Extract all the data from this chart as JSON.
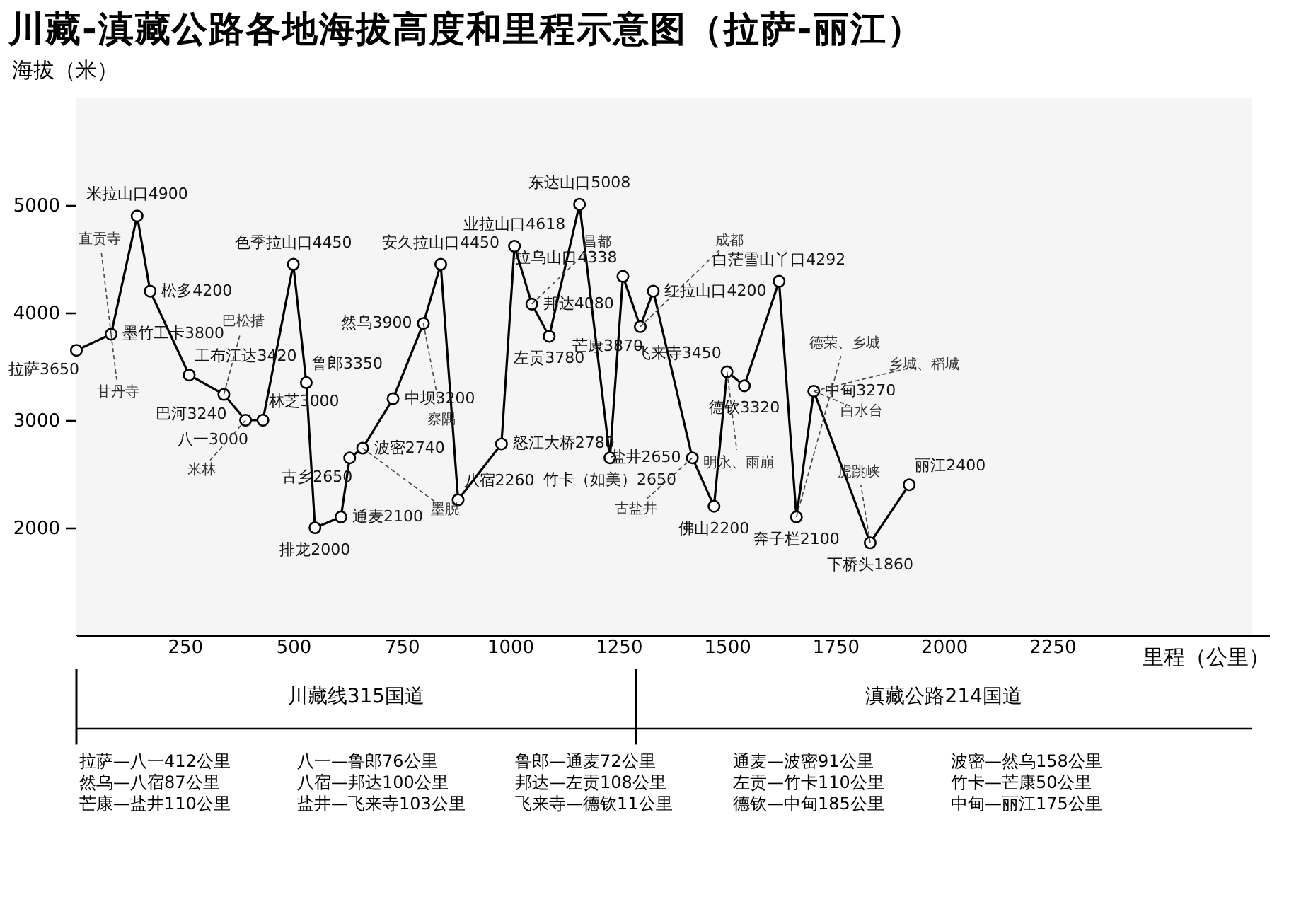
{
  "chart_data": {
    "type": "line",
    "title": "川藏-滇藏公路各地海拔高度和里程示意图（拉萨-丽江）",
    "xlabel": "里程（公里）",
    "ylabel": "海拔（米）",
    "x": [
      0,
      80,
      140,
      170,
      260,
      340,
      390,
      430,
      500,
      530,
      550,
      610,
      630,
      660,
      730,
      800,
      840,
      880,
      980,
      1010,
      1050,
      1090,
      1160,
      1230,
      1260,
      1300,
      1330,
      1420,
      1470,
      1500,
      1540,
      1620,
      1660,
      1700,
      1830,
      1920
    ],
    "values": [
      3650,
      3800,
      4900,
      4200,
      3420,
      3240,
      3000,
      3000,
      4450,
      3350,
      2000,
      2100,
      2650,
      2740,
      3200,
      3900,
      4450,
      2260,
      2780,
      4618,
      4080,
      3780,
      5008,
      2650,
      4338,
      3870,
      4200,
      2650,
      2200,
      3450,
      3320,
      4292,
      2100,
      3270,
      1860,
      2400
    ],
    "value_labels": [
      "拉萨3650",
      "墨竹工卡3800",
      "米拉山口4900",
      "松多4200",
      "工布江达3420",
      "巴河3240",
      "八一3000",
      "林芝3000",
      "色季拉山口4450",
      "鲁郎3350",
      "排龙2000",
      "通麦2100",
      "古乡2650",
      "波密2740",
      "中坝3200",
      "然乌3900",
      "安久拉山口4450",
      "八宿2260",
      "怒江大桥2780",
      "业拉山口4618",
      "邦达4080",
      "左贡3780",
      "东达山口5008",
      "竹卡（如美）2650",
      "拉乌山口4338",
      "芒康3870",
      "红拉山口4200",
      "盐井2650",
      "佛山2200",
      "飞来寺3450",
      "德钦3320",
      "白茫雪山丫口4292",
      "奔子栏2100",
      "中甸3270",
      "下桥头1860",
      "丽江2400"
    ],
    "color": "#000000",
    "marker": "circle",
    "xlim": [
      0,
      2750
    ],
    "xticks": [
      250,
      500,
      750,
      1000,
      1250,
      1500,
      1750,
      2000,
      2250
    ],
    "ylim": [
      1000,
      6000
    ],
    "yticks": [
      2000,
      3000,
      4000,
      5000
    ],
    "bands": [
      {
        "axis": "x",
        "from": 0,
        "to": 1290,
        "label": "川藏线315国道"
      },
      {
        "axis": "x",
        "from": 1290,
        "to": 2710,
        "label": "滇藏公路214国道"
      }
    ],
    "annotations": [
      {
        "text": "直贡寺",
        "x": 80,
        "y": 3800
      },
      {
        "text": "甘丹寺",
        "x": 80,
        "y": 3800
      },
      {
        "text": "巴松措",
        "x": 340,
        "y": 3240
      },
      {
        "text": "米林",
        "x": 390,
        "y": 3000
      },
      {
        "text": "墨脱",
        "x": 660,
        "y": 2740
      },
      {
        "text": "察隅",
        "x": 800,
        "y": 3900
      },
      {
        "text": "昌都",
        "x": 1050,
        "y": 4080
      },
      {
        "text": "成都",
        "x": 1300,
        "y": 3870
      },
      {
        "text": "古盐井",
        "x": 1420,
        "y": 2650
      },
      {
        "text": "明永、雨崩",
        "x": 1500,
        "y": 3450
      },
      {
        "text": "德荣、乡城",
        "x": 1660,
        "y": 2100
      },
      {
        "text": "乡城、稻城",
        "x": 1700,
        "y": 3270
      },
      {
        "text": "白水台",
        "x": 1700,
        "y": 3270
      },
      {
        "text": "虎跳峡",
        "x": 1830,
        "y": 1860
      },
      "拉萨—八一412公里",
      "然乌—八宿87公里",
      "芒康—盐井110公里",
      "八一—鲁郎76公里",
      "八宿—邦达100公里",
      "盐井—飞来寺103公里",
      "鲁郎—通麦72公里",
      "邦达—左贡108公里",
      "飞来寺—德钦11公里",
      "通麦—波密91公里",
      "左贡—竹卡110公里",
      "德钦—中甸185公里",
      "波密—然乌158公里",
      "竹卡—芒康50公里",
      "中甸—丽江175公里"
    ]
  }
}
